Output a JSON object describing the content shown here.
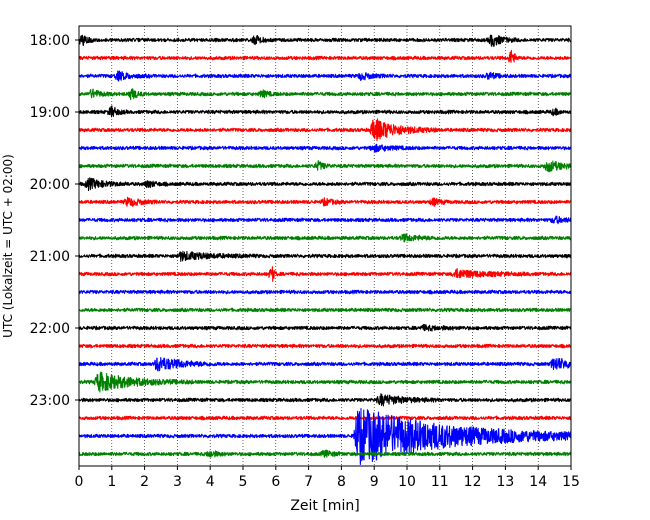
{
  "chart_data": {
    "type": "line",
    "subtype": "helicorder-seismogram",
    "xlabel": "Zeit  [min]",
    "ylabel": "UTC (Lokalzeit = UTC + 02:00)",
    "xlim": [
      0,
      15
    ],
    "x_ticks": [
      "0",
      "1",
      "2",
      "3",
      "4",
      "5",
      "6",
      "7",
      "8",
      "9",
      "10",
      "11",
      "12",
      "13",
      "14",
      "15"
    ],
    "row_labels": [
      "18:00",
      "19:00",
      "20:00",
      "21:00",
      "22:00",
      "23:00"
    ],
    "row_interval_min": 15,
    "grid": "vertical dotted lines at each minute",
    "trace_color_cycle": [
      "#000000",
      "#ff0000",
      "#0000ff",
      "#008000"
    ],
    "traces": [
      {
        "start": "18:00",
        "color": "#000000",
        "events": [
          {
            "t": 0.1,
            "amp": 5,
            "dur": 0.3
          },
          {
            "t": 5.4,
            "amp": 4,
            "dur": 0.3
          },
          {
            "t": 12.6,
            "amp": 6,
            "dur": 0.5
          }
        ]
      },
      {
        "start": "18:15",
        "color": "#ff0000",
        "events": [
          {
            "t": 13.2,
            "amp": 8,
            "dur": 0.15
          }
        ]
      },
      {
        "start": "18:30",
        "color": "#0000ff",
        "events": [
          {
            "t": 1.2,
            "amp": 4,
            "dur": 0.6
          },
          {
            "t": 8.6,
            "amp": 3,
            "dur": 0.6
          },
          {
            "t": 12.5,
            "amp": 3,
            "dur": 0.4
          }
        ]
      },
      {
        "start": "18:45",
        "color": "#008000",
        "events": [
          {
            "t": 0.4,
            "amp": 4,
            "dur": 0.4
          },
          {
            "t": 1.6,
            "amp": 5,
            "dur": 0.3
          },
          {
            "t": 5.6,
            "amp": 3,
            "dur": 0.3
          }
        ]
      },
      {
        "start": "19:00",
        "color": "#000000",
        "events": [
          {
            "t": 1.0,
            "amp": 5,
            "dur": 0.3
          },
          {
            "t": 14.5,
            "amp": 3,
            "dur": 0.2
          }
        ]
      },
      {
        "start": "19:15",
        "color": "#ff0000",
        "events": [
          {
            "t": 9.0,
            "amp": 11,
            "dur": 1.2
          }
        ]
      },
      {
        "start": "19:30",
        "color": "#0000ff",
        "events": [
          {
            "t": 9.0,
            "amp": 3,
            "dur": 0.8
          }
        ]
      },
      {
        "start": "19:45",
        "color": "#008000",
        "events": [
          {
            "t": 7.3,
            "amp": 4,
            "dur": 0.3
          },
          {
            "t": 14.3,
            "amp": 5,
            "dur": 0.8
          }
        ]
      },
      {
        "start": "20:00",
        "color": "#000000",
        "events": [
          {
            "t": 0.3,
            "amp": 5,
            "dur": 0.8
          },
          {
            "t": 2.1,
            "amp": 3,
            "dur": 0.4
          }
        ]
      },
      {
        "start": "20:15",
        "color": "#ff0000",
        "events": [
          {
            "t": 1.5,
            "amp": 4,
            "dur": 0.6
          },
          {
            "t": 7.5,
            "amp": 3,
            "dur": 0.4
          },
          {
            "t": 10.8,
            "amp": 3,
            "dur": 0.4
          }
        ]
      },
      {
        "start": "20:30",
        "color": "#0000ff",
        "events": [
          {
            "t": 14.5,
            "amp": 3,
            "dur": 0.6
          }
        ]
      },
      {
        "start": "20:45",
        "color": "#008000",
        "events": [
          {
            "t": 9.9,
            "amp": 3,
            "dur": 0.8
          }
        ]
      },
      {
        "start": "21:00",
        "color": "#000000",
        "events": [
          {
            "t": 3.1,
            "amp": 4,
            "dur": 1.5
          }
        ]
      },
      {
        "start": "21:15",
        "color": "#ff0000",
        "events": [
          {
            "t": 5.9,
            "amp": 7,
            "dur": 0.1
          },
          {
            "t": 11.5,
            "amp": 4,
            "dur": 1.5
          }
        ]
      },
      {
        "start": "21:30",
        "color": "#0000ff",
        "events": []
      },
      {
        "start": "21:45",
        "color": "#008000",
        "events": []
      },
      {
        "start": "22:00",
        "color": "#000000",
        "events": [
          {
            "t": 10.5,
            "amp": 2,
            "dur": 1.0
          }
        ]
      },
      {
        "start": "22:15",
        "color": "#ff0000",
        "events": []
      },
      {
        "start": "22:30",
        "color": "#0000ff",
        "events": [
          {
            "t": 2.4,
            "amp": 7,
            "dur": 1.2
          },
          {
            "t": 14.5,
            "amp": 6,
            "dur": 0.9
          }
        ]
      },
      {
        "start": "22:45",
        "color": "#008000",
        "events": [
          {
            "t": 0.6,
            "amp": 9,
            "dur": 1.8
          }
        ]
      },
      {
        "start": "23:00",
        "color": "#000000",
        "events": [
          {
            "t": 9.2,
            "amp": 5,
            "dur": 1.2
          }
        ]
      },
      {
        "start": "23:15",
        "color": "#ff0000",
        "events": []
      },
      {
        "start": "23:30",
        "color": "#0000ff",
        "events": [
          {
            "t": 8.5,
            "amp": 28,
            "dur": 5.0
          }
        ]
      },
      {
        "start": "23:45",
        "color": "#008000",
        "events": [
          {
            "t": 4.0,
            "amp": 3,
            "dur": 0.4
          },
          {
            "t": 7.5,
            "amp": 3,
            "dur": 0.4
          }
        ]
      }
    ]
  }
}
